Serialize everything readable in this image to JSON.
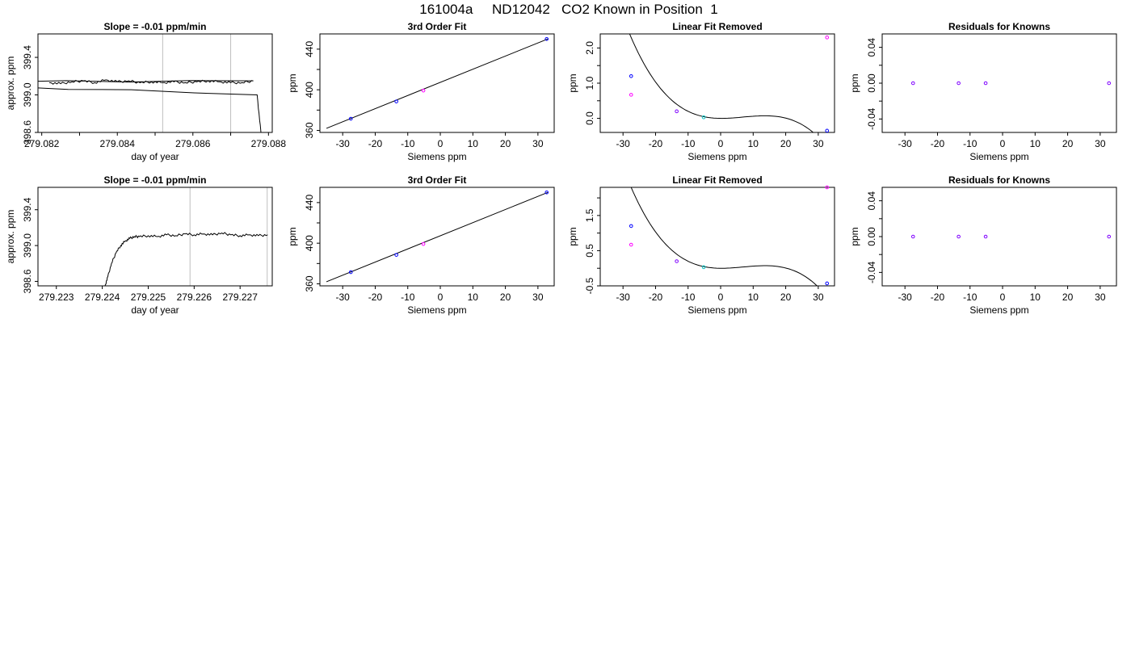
{
  "figure": {
    "title": "161004a     ND12042   CO2 Known in Position  1"
  },
  "colors": {
    "line": "#000000",
    "vline": "#bebebe",
    "point_blue": "#0000ff",
    "point_cyan": "#00bfbf",
    "point_magenta": "#ff00ff",
    "point_purple": "#7f00ff"
  },
  "chart_data": [
    {
      "type": "line",
      "title": "Slope =  -0.01  ppm/min",
      "xlabel": "day of year",
      "ylabel": "approx. ppm",
      "xlim": [
        279.0819,
        279.0881
      ],
      "ylim": [
        398.6,
        399.65
      ],
      "xticks": [
        279.082,
        279.084,
        279.086,
        279.088
      ],
      "xtick_labels": [
        "279.082",
        "279.084",
        "279.086",
        "279.088"
      ],
      "xticks_minor": [
        279.083,
        279.085,
        279.087
      ],
      "yticks": [
        398.6,
        399.0,
        399.4
      ],
      "ytick_labels": [
        "398.6",
        "399.0",
        "399.4"
      ],
      "vlines": [
        279.0852,
        279.087
      ],
      "series": [
        {
          "color": "line",
          "x": [
            279.0822,
            279.0825,
            279.0828,
            279.0831,
            279.0834,
            279.0837,
            279.084,
            279.0843,
            279.0846,
            279.0849,
            279.0852,
            279.0855,
            279.0858,
            279.0861,
            279.0864,
            279.0867,
            279.087,
            279.0873,
            279.0876,
            279.0777,
            279.0877,
            279.0878
          ],
          "y": [
            399.13,
            399.12,
            399.14,
            399.15,
            399.13,
            399.16,
            399.14,
            399.15,
            399.13,
            399.14,
            399.13,
            399.14,
            399.13,
            399.14,
            399.15,
            399.14,
            399.13,
            399.13,
            399.15,
            399.13,
            399.0,
            398.6
          ]
        }
      ]
    },
    {
      "type": "scatter",
      "title": "3rd Order Fit",
      "xlabel": "Siemens ppm",
      "ylabel": "ppm",
      "xlim": [
        -37,
        35
      ],
      "ylim": [
        358,
        455
      ],
      "xticks": [
        -30,
        -20,
        -10,
        0,
        10,
        20,
        30
      ],
      "xtick_labels": [
        "-30",
        "-20",
        "-10",
        "0",
        "10",
        "20",
        "30"
      ],
      "yticks": [
        360,
        400,
        440
      ],
      "ytick_labels": [
        "360",
        "400",
        "440"
      ],
      "yticks_minor": [
        380,
        420
      ],
      "fit_line": {
        "x": [
          -35,
          33
        ],
        "y": [
          362,
          450
        ]
      },
      "points": [
        {
          "x": -27.5,
          "y": 371.5,
          "color": "point_blue"
        },
        {
          "x": -13.5,
          "y": 388.5,
          "color": "point_blue"
        },
        {
          "x": -5.2,
          "y": 399.2,
          "color": "point_magenta"
        },
        {
          "x": 32.7,
          "y": 450.0,
          "color": "point_blue"
        }
      ]
    },
    {
      "type": "scatter",
      "title": "Linear Fit Removed",
      "xlabel": "Siemens ppm",
      "ylabel": "ppm",
      "xlim": [
        -37,
        35
      ],
      "ylim": [
        -0.4,
        2.4
      ],
      "xticks": [
        -30,
        -20,
        -10,
        0,
        10,
        20,
        30
      ],
      "xtick_labels": [
        "-30",
        "-20",
        "-10",
        "0",
        "10",
        "20",
        "30"
      ],
      "yticks": [
        0.0,
        1.0,
        2.0
      ],
      "ytick_labels": [
        "0.0",
        "1.0",
        "2.0"
      ],
      "yticks_minor": [
        0.5,
        1.5
      ],
      "curve": {
        "x0": 0.3,
        "k": 6.22e-05,
        "xmin": -35.5,
        "xmax": 33
      },
      "points": [
        {
          "x": -27.5,
          "y": 1.2,
          "color": "point_blue"
        },
        {
          "x": -27.5,
          "y": 0.67,
          "color": "point_magenta"
        },
        {
          "x": -13.5,
          "y": 0.2,
          "color": "point_purple"
        },
        {
          "x": -5.2,
          "y": 0.03,
          "color": "point_cyan"
        },
        {
          "x": 32.7,
          "y": 2.3,
          "color": "point_magenta"
        },
        {
          "x": 32.7,
          "y": -0.35,
          "color": "point_blue"
        }
      ]
    },
    {
      "type": "scatter",
      "title": "Residuals for Knowns",
      "xlabel": "Siemens ppm",
      "ylabel": "ppm",
      "xlim": [
        -37,
        35
      ],
      "ylim": [
        -0.055,
        0.055
      ],
      "xticks": [
        -30,
        -20,
        -10,
        0,
        10,
        20,
        30
      ],
      "xtick_labels": [
        "-30",
        "-20",
        "-10",
        "0",
        "10",
        "20",
        "30"
      ],
      "yticks": [
        -0.04,
        0.0,
        0.04
      ],
      "ytick_labels": [
        "-0.04",
        "0.00",
        "0.04"
      ],
      "yticks_minor": [
        -0.02,
        0.02
      ],
      "points": [
        {
          "x": -27.5,
          "y": 0.0,
          "color": "point_purple"
        },
        {
          "x": -13.5,
          "y": 0.0,
          "color": "point_purple"
        },
        {
          "x": -5.2,
          "y": 0.0,
          "color": "point_purple"
        },
        {
          "x": 32.7,
          "y": 0.0,
          "color": "point_purple"
        }
      ]
    },
    {
      "type": "line",
      "title": "Slope =  -0.01  ppm/min",
      "xlabel": "day of year",
      "ylabel": "approx. ppm",
      "xlim": [
        279.2226,
        279.2277
      ],
      "ylim": [
        398.55,
        399.65
      ],
      "xticks": [
        279.223,
        279.224,
        279.225,
        279.226,
        279.227
      ],
      "xtick_labels": [
        "279.223",
        "279.224",
        "279.225",
        "279.226",
        "279.227"
      ],
      "yticks": [
        398.6,
        399.0,
        399.4
      ],
      "ytick_labels": [
        "398.6",
        "399.0",
        "399.4"
      ],
      "vlines": [
        279.22591,
        279.22759
      ],
      "series": [
        {
          "color": "line",
          "x": [
            279.22406,
            279.22412,
            279.2242,
            279.2243,
            279.2244,
            279.2245,
            279.2246,
            279.2247,
            279.2248,
            279.225,
            279.2252,
            279.2254,
            279.2256,
            279.2258,
            279.226,
            279.2262,
            279.2264,
            279.2266,
            279.2268,
            279.227,
            279.2272,
            279.2274,
            279.2276
          ],
          "y": [
            398.55,
            398.65,
            398.8,
            398.92,
            399.0,
            399.05,
            399.08,
            399.1,
            399.1,
            399.11,
            399.1,
            399.12,
            399.11,
            399.13,
            399.12,
            399.13,
            399.12,
            399.14,
            399.12,
            399.11,
            399.12,
            399.11,
            399.12
          ]
        }
      ]
    },
    {
      "type": "scatter",
      "title": "3rd Order Fit",
      "xlabel": "Siemens ppm",
      "ylabel": "ppm",
      "xlim": [
        -37,
        35
      ],
      "ylim": [
        358,
        455
      ],
      "xticks": [
        -30,
        -20,
        -10,
        0,
        10,
        20,
        30
      ],
      "xtick_labels": [
        "-30",
        "-20",
        "-10",
        "0",
        "10",
        "20",
        "30"
      ],
      "yticks": [
        360,
        400,
        440
      ],
      "ytick_labels": [
        "360",
        "400",
        "440"
      ],
      "yticks_minor": [
        380,
        420
      ],
      "fit_line": {
        "x": [
          -35,
          33
        ],
        "y": [
          362,
          450
        ]
      },
      "points": [
        {
          "x": -27.5,
          "y": 371.5,
          "color": "point_blue"
        },
        {
          "x": -13.5,
          "y": 388.5,
          "color": "point_blue"
        },
        {
          "x": -5.2,
          "y": 399.2,
          "color": "point_magenta"
        },
        {
          "x": 32.7,
          "y": 450.0,
          "color": "point_blue"
        }
      ]
    },
    {
      "type": "scatter",
      "title": "Linear Fit Removed",
      "xlabel": "Siemens ppm",
      "ylabel": "ppm",
      "xlim": [
        -37,
        35
      ],
      "ylim": [
        -0.5,
        2.3
      ],
      "xticks": [
        -30,
        -20,
        -10,
        0,
        10,
        20,
        30
      ],
      "xtick_labels": [
        "-30",
        "-20",
        "-10",
        "0",
        "10",
        "20",
        "30"
      ],
      "yticks": [
        -0.5,
        0.5,
        1.5
      ],
      "ytick_labels": [
        "-0.5",
        "0.5",
        "1.5"
      ],
      "yticks_minor": [
        0.0,
        1.0,
        2.0
      ],
      "curve": {
        "x0": 0.3,
        "k": 6.22e-05,
        "xmin": -35.5,
        "xmax": 33
      },
      "points": [
        {
          "x": -27.5,
          "y": 1.2,
          "color": "point_blue"
        },
        {
          "x": -27.5,
          "y": 0.67,
          "color": "point_magenta"
        },
        {
          "x": -13.5,
          "y": 0.2,
          "color": "point_purple"
        },
        {
          "x": -5.2,
          "y": 0.03,
          "color": "point_cyan"
        },
        {
          "x": 32.7,
          "y": 2.3,
          "color": "point_magenta"
        },
        {
          "x": 32.7,
          "y": -0.43,
          "color": "point_blue"
        }
      ]
    },
    {
      "type": "scatter",
      "title": "Residuals for Knowns",
      "xlabel": "Siemens ppm",
      "ylabel": "ppm",
      "xlim": [
        -37,
        35
      ],
      "ylim": [
        -0.055,
        0.055
      ],
      "xticks": [
        -30,
        -20,
        -10,
        0,
        10,
        20,
        30
      ],
      "xtick_labels": [
        "-30",
        "-20",
        "-10",
        "0",
        "10",
        "20",
        "30"
      ],
      "yticks": [
        -0.04,
        0.0,
        0.04
      ],
      "ytick_labels": [
        "-0.04",
        "0.00",
        "0.04"
      ],
      "yticks_minor": [
        -0.02,
        0.02
      ],
      "points": [
        {
          "x": -27.5,
          "y": 0.0,
          "color": "point_purple"
        },
        {
          "x": -13.5,
          "y": 0.0,
          "color": "point_purple"
        },
        {
          "x": -5.2,
          "y": 0.0,
          "color": "point_purple"
        },
        {
          "x": 32.7,
          "y": 0.0,
          "color": "point_purple"
        }
      ]
    }
  ]
}
